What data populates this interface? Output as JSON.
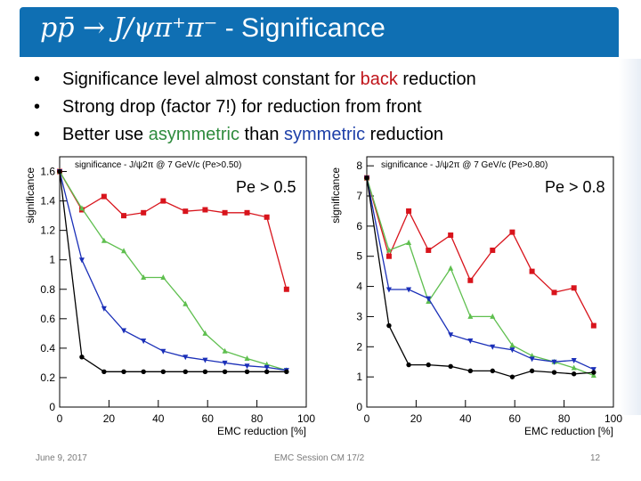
{
  "slide": {
    "title_formula": "pp̄ → J/ψπ⁺π⁻",
    "title_suffix": " - Significance",
    "bullets": [
      {
        "before": "Significance level almost constant for ",
        "hl": "back",
        "after": " reduction"
      },
      {
        "before": "Strong drop (factor 7!) for reduction from front",
        "hl": "",
        "after": ""
      },
      {
        "before": "Better use ",
        "hl": "asymmetric",
        "mid": " than ",
        "hl2": "symmetric",
        "after": " reduction"
      }
    ],
    "colors": {
      "title_band": "#0f6fb3",
      "red": "#c0141a",
      "green": "#2e8b3d",
      "blue": "#1d3fa8"
    },
    "footer": {
      "date": "June 9, 2017",
      "center": "EMC Session CM 17/2",
      "page": "12"
    }
  },
  "chart_data": [
    {
      "type": "line",
      "title": "significance - J/ψ2π @ 7 GeV/c (Pe>0.50)",
      "annotation": "Pe > 0.5",
      "xlabel": "EMC reduction [%]",
      "ylabel": "significance",
      "xlim": [
        0,
        100
      ],
      "ylim": [
        0,
        1.7
      ],
      "xticks": [
        0,
        20,
        40,
        60,
        80,
        100
      ],
      "yticks": [
        0,
        0.2,
        0.4,
        0.6,
        0.8,
        1,
        1.2,
        1.4,
        1.6
      ],
      "series": [
        {
          "color": "#d8141c",
          "marker": "square",
          "x": [
            0,
            9,
            18,
            26,
            34,
            42,
            51,
            59,
            67,
            76,
            84,
            92
          ],
          "y": [
            1.6,
            1.34,
            1.43,
            1.3,
            1.32,
            1.4,
            1.33,
            1.34,
            1.32,
            1.32,
            1.29,
            0.8
          ]
        },
        {
          "color": "#5fbf4f",
          "marker": "triangle-up",
          "x": [
            0,
            9,
            18,
            26,
            34,
            42,
            51,
            59,
            67,
            76,
            84,
            92
          ],
          "y": [
            1.6,
            1.35,
            1.13,
            1.06,
            0.88,
            0.88,
            0.7,
            0.5,
            0.38,
            0.33,
            0.29,
            0.25
          ]
        },
        {
          "color": "#1a2fb8",
          "marker": "triangle-down",
          "x": [
            0,
            9,
            18,
            26,
            34,
            42,
            51,
            59,
            67,
            76,
            84,
            92
          ],
          "y": [
            1.6,
            1.0,
            0.67,
            0.52,
            0.45,
            0.38,
            0.34,
            0.32,
            0.3,
            0.28,
            0.27,
            0.25
          ]
        },
        {
          "color": "#000000",
          "marker": "circle",
          "x": [
            0,
            9,
            18,
            26,
            34,
            42,
            51,
            59,
            67,
            76,
            84,
            92
          ],
          "y": [
            1.6,
            0.34,
            0.24,
            0.24,
            0.24,
            0.24,
            0.24,
            0.24,
            0.24,
            0.24,
            0.24,
            0.24
          ]
        }
      ]
    },
    {
      "type": "line",
      "title": "significance - J/ψ2π @ 7 GeV/c (Pe>0.80)",
      "annotation": "Pe > 0.8",
      "xlabel": "EMC reduction [%]",
      "ylabel": "significance",
      "xlim": [
        0,
        100
      ],
      "ylim": [
        0,
        8.3
      ],
      "xticks": [
        0,
        20,
        40,
        60,
        80,
        100
      ],
      "yticks": [
        0,
        1,
        2,
        3,
        4,
        5,
        6,
        7,
        8
      ],
      "series": [
        {
          "color": "#d8141c",
          "marker": "square",
          "x": [
            0,
            9,
            17,
            25,
            34,
            42,
            51,
            59,
            67,
            76,
            84,
            92
          ],
          "y": [
            7.6,
            5.0,
            6.5,
            5.2,
            5.7,
            4.2,
            5.2,
            5.8,
            4.5,
            3.8,
            3.95,
            2.7
          ]
        },
        {
          "color": "#5fbf4f",
          "marker": "triangle-up",
          "x": [
            0,
            9,
            17,
            25,
            34,
            42,
            51,
            59,
            67,
            76,
            84,
            92
          ],
          "y": [
            7.6,
            5.2,
            5.45,
            3.5,
            4.6,
            3.0,
            3.0,
            2.05,
            1.7,
            1.5,
            1.3,
            1.05
          ]
        },
        {
          "color": "#1a2fb8",
          "marker": "triangle-down",
          "x": [
            0,
            9,
            17,
            25,
            34,
            42,
            51,
            59,
            67,
            76,
            84,
            92
          ],
          "y": [
            7.6,
            3.9,
            3.9,
            3.6,
            2.4,
            2.2,
            2.0,
            1.9,
            1.6,
            1.5,
            1.55,
            1.25
          ]
        },
        {
          "color": "#000000",
          "marker": "circle",
          "x": [
            0,
            9,
            17,
            25,
            34,
            42,
            51,
            59,
            67,
            76,
            84,
            92
          ],
          "y": [
            7.6,
            2.7,
            1.4,
            1.4,
            1.35,
            1.2,
            1.2,
            1.0,
            1.2,
            1.15,
            1.1,
            1.15
          ]
        }
      ]
    }
  ]
}
